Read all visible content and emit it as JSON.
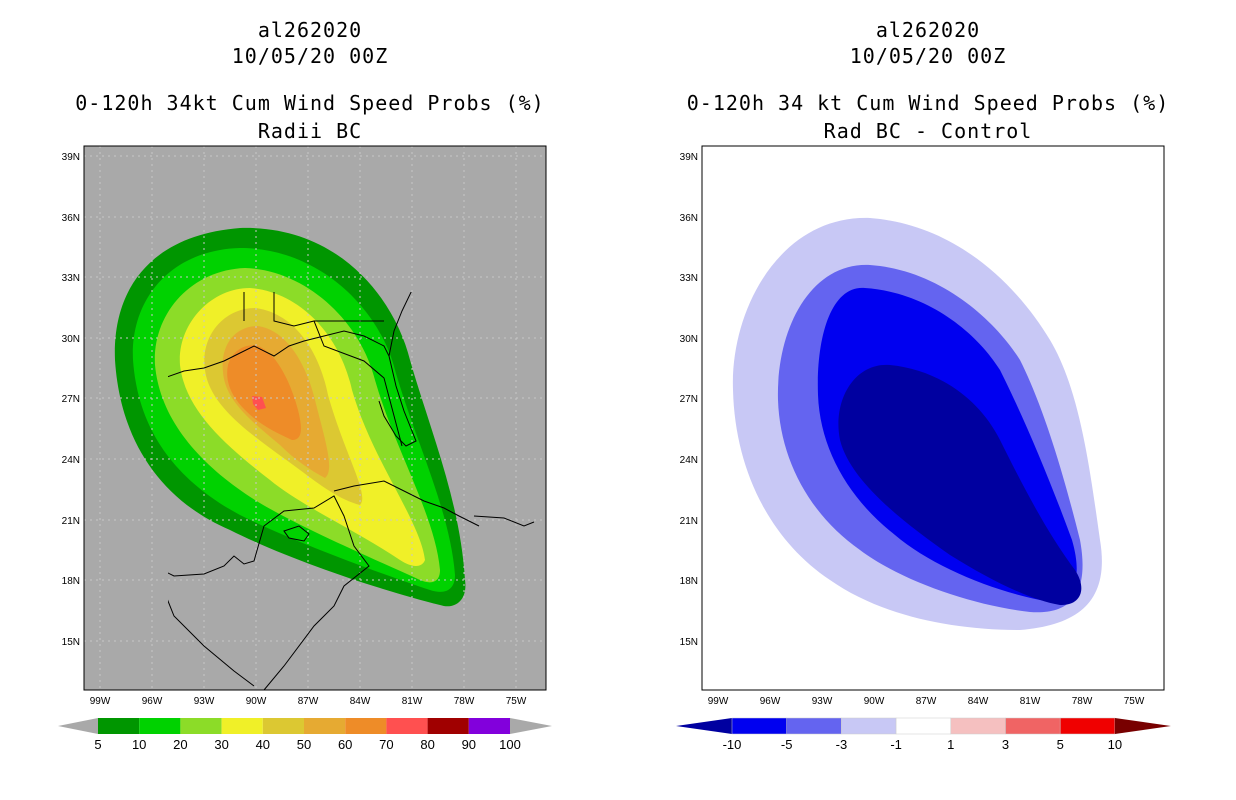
{
  "left_panel": {
    "storm_id": "al262020",
    "datetime": "10/05/20 00Z",
    "title": "0-120h 34kt Cum Wind Speed Probs (%)",
    "subtitle": "Radii BC",
    "background_color": "#a9a9a9",
    "colorbar": {
      "labels": [
        "5",
        "10",
        "20",
        "30",
        "40",
        "50",
        "60",
        "70",
        "80",
        "90",
        "100"
      ],
      "colors": [
        "#009600",
        "#00d200",
        "#8cdc28",
        "#f0f028",
        "#dcc832",
        "#e6aa32",
        "#ee8c28",
        "#ff5050",
        "#a00000",
        "#8200dc"
      ]
    }
  },
  "right_panel": {
    "storm_id": "al262020",
    "datetime": "10/05/20 00Z",
    "title": "0-120h 34 kt Cum Wind Speed Probs (%)",
    "subtitle": "Rad BC - Control",
    "background_color": "#ffffff",
    "colorbar": {
      "labels": [
        "-10",
        "-5",
        "-3",
        "-1",
        "1",
        "3",
        "5",
        "10"
      ],
      "colors": [
        "#0000a0",
        "#0000f0",
        "#6464f0",
        "#c8c8f5",
        "#ffffff",
        "#f5c0c0",
        "#f06464",
        "#f00000",
        "#780000"
      ]
    }
  },
  "axes": {
    "lat_labels": [
      "39N",
      "36N",
      "33N",
      "30N",
      "27N",
      "24N",
      "21N",
      "18N",
      "15N"
    ],
    "lon_labels": [
      "99W",
      "96W",
      "93W",
      "90W",
      "87W",
      "84W",
      "81W",
      "78W",
      "75W"
    ]
  }
}
